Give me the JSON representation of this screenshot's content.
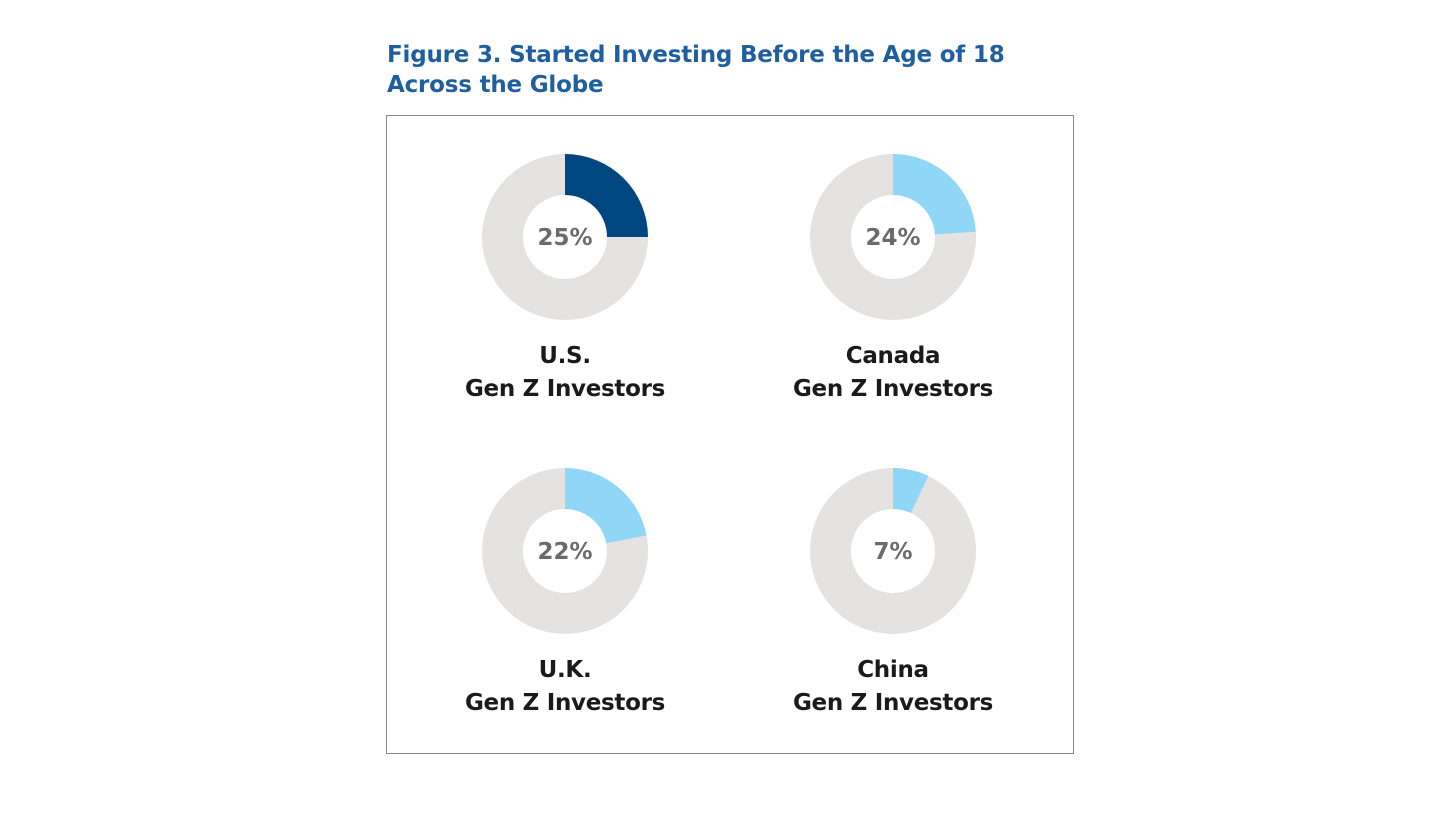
{
  "title": "Figure 3. Started Investing Before the Age of 18 Across the Globe",
  "colors": {
    "remainder": "#e4e3e2",
    "title": "#1f5fa0"
  },
  "chart_data": {
    "type": "pie",
    "subtype": "donut",
    "title": "Figure 3. Started Investing Before the Age of 18 Across the Globe",
    "charts": [
      {
        "region": "U.S.",
        "group": "Gen Z Investors",
        "value": 25,
        "label": "25%",
        "color": "#004680"
      },
      {
        "region": "Canada",
        "group": "Gen Z Investors",
        "value": 24,
        "label": "24%",
        "color": "#8fd6f7"
      },
      {
        "region": "U.K.",
        "group": "Gen Z Investors",
        "value": 22,
        "label": "22%",
        "color": "#8fd6f7"
      },
      {
        "region": "China",
        "group": "Gen Z Investors",
        "value": 7,
        "label": "7%",
        "color": "#8fd6f7"
      }
    ]
  }
}
